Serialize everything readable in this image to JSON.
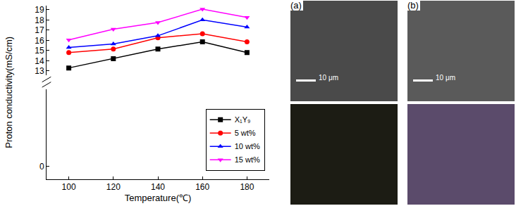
{
  "chart_data": {
    "type": "line",
    "x_label": "Temperature(℃)",
    "y_label": "Proton conductivity(mS/cm)",
    "x": [
      100,
      120,
      140,
      160,
      180
    ],
    "xlim": [
      90,
      190
    ],
    "xticks": [
      100,
      120,
      140,
      160,
      180
    ],
    "ylim": [
      12.6,
      19.4
    ],
    "yticks": [
      13,
      14,
      15,
      16,
      17,
      18,
      19
    ],
    "y2lim": [
      -1,
      6
    ],
    "y2ticks": [
      0
    ],
    "grid": false,
    "legend": "lower right",
    "series": [
      {
        "name": "X₁Y₉",
        "color": "#000000",
        "marker": "square",
        "line_style": "solid",
        "values": [
          13.3,
          14.2,
          15.15,
          15.85,
          14.8
        ]
      },
      {
        "name": "5 wt%",
        "color": "#ff0000",
        "marker": "circle",
        "line_style": "solid",
        "values": [
          14.8,
          15.15,
          16.25,
          16.65,
          15.85
        ]
      },
      {
        "name": "10 wt%",
        "color": "#0000ff",
        "marker": "triangle-up",
        "line_style": "solid",
        "values": [
          15.3,
          15.65,
          16.45,
          18.0,
          17.3
        ]
      },
      {
        "name": "15 wt%",
        "color": "#ff00ff",
        "marker": "triangle-down",
        "line_style": "solid",
        "values": [
          16.05,
          17.1,
          17.75,
          19.05,
          18.25
        ]
      }
    ]
  },
  "panels": [
    {
      "label": "(a)",
      "scale_bar": "10 μm"
    },
    {
      "label": "(b)",
      "scale_bar": "10 μm"
    }
  ]
}
